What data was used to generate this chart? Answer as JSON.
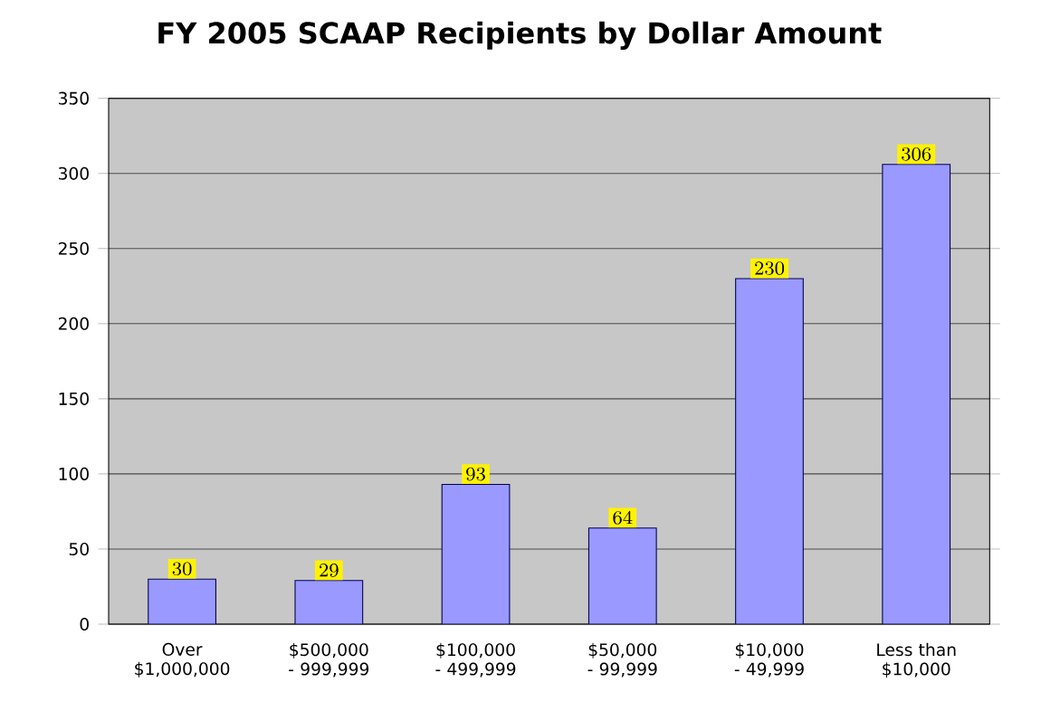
{
  "chart_data": {
    "type": "bar",
    "title": "FY 2005 SCAAP Recipients by Dollar Amount",
    "categories": [
      "Over $1,000,000",
      "$500,000 - 999,999",
      "$100,000 - 499,999",
      "$50,000 - 99,999",
      "$10,000 - 49,999",
      "Less than $10,000"
    ],
    "values": [
      30,
      29,
      93,
      64,
      230,
      306
    ],
    "color": "#9999ff",
    "ylim": [
      0,
      350
    ],
    "yticks": [
      0,
      50,
      100,
      150,
      200,
      250,
      300,
      350
    ],
    "grid": "y",
    "data_labels": true
  }
}
